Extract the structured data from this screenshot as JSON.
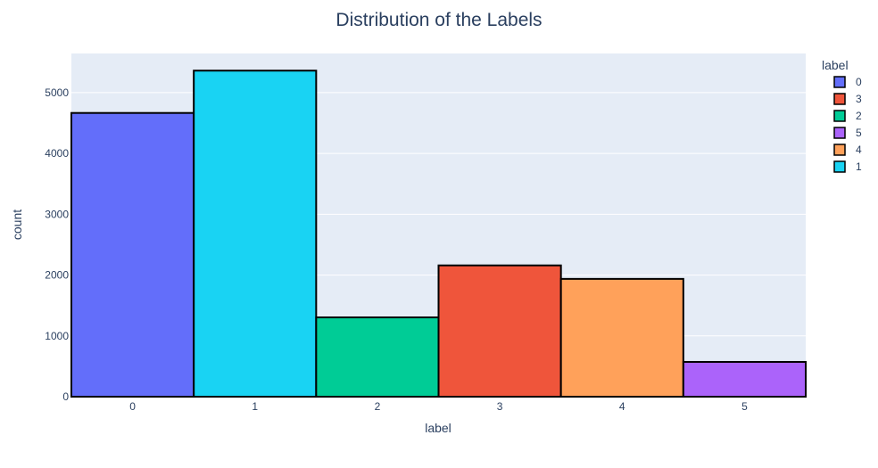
{
  "chart_data": {
    "type": "bar",
    "title": "Distribution of the Labels",
    "xlabel": "label",
    "ylabel": "count",
    "categories": [
      "0",
      "1",
      "2",
      "3",
      "4",
      "5"
    ],
    "values": [
      4666,
      5362,
      1304,
      2159,
      1937,
      572
    ],
    "colors": [
      "#636efa",
      "#19d3f3",
      "#00cc96",
      "#ef553b",
      "#ffa15a",
      "#ab63fa"
    ],
    "ylim": [
      0,
      5644
    ],
    "yticks": [
      0,
      1000,
      2000,
      3000,
      4000,
      5000
    ],
    "grid": true,
    "plot_background": "#e5ecf6",
    "bar_outline_color": "#000000",
    "legend": {
      "title": "label",
      "placement": "right",
      "entries": [
        {
          "label": "0",
          "color": "#636efa"
        },
        {
          "label": "3",
          "color": "#ef553b"
        },
        {
          "label": "2",
          "color": "#00cc96"
        },
        {
          "label": "5",
          "color": "#ab63fa"
        },
        {
          "label": "4",
          "color": "#ffa15a"
        },
        {
          "label": "1",
          "color": "#19d3f3"
        }
      ]
    }
  }
}
